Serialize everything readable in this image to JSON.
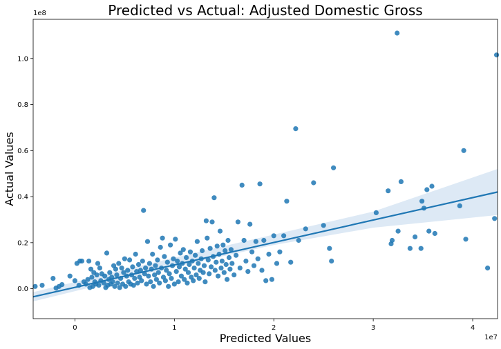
{
  "chart_data": {
    "type": "scatter",
    "title": "Predicted vs Actual: Adjusted Domestic Gross",
    "xlabel": "Predicted Values",
    "ylabel": "Actual Values",
    "x_offset_label": "1e7",
    "y_offset_label": "1e8",
    "xlim": [
      -4200000,
      42500000
    ],
    "ylim": [
      -13000000,
      117000000
    ],
    "x_ticks": [
      0,
      10000000,
      20000000,
      30000000,
      40000000
    ],
    "x_tick_labels": [
      "0",
      "1",
      "2",
      "3",
      "4"
    ],
    "y_ticks": [
      0,
      20000000,
      40000000,
      60000000,
      80000000,
      100000000
    ],
    "y_tick_labels": [
      "0.0",
      "0.2",
      "0.4",
      "0.6",
      "0.8",
      "1.0"
    ],
    "grid": false,
    "point_color": "#1f77b4",
    "regression": {
      "color": "#1f77b4",
      "ci_color": "#c6dbef",
      "line": [
        [
          -4200000,
          -3500000
        ],
        [
          42500000,
          42000000
        ]
      ],
      "ci_upper": [
        [
          -4200000,
          -1500000
        ],
        [
          10000000,
          13500000
        ],
        [
          20000000,
          23500000
        ],
        [
          30000000,
          33500000
        ],
        [
          42500000,
          52000000
        ]
      ],
      "ci_lower": [
        [
          -4200000,
          -5500000
        ],
        [
          10000000,
          9500000
        ],
        [
          20000000,
          19000000
        ],
        [
          30000000,
          26500000
        ],
        [
          42500000,
          32000000
        ]
      ]
    },
    "points": [
      [
        -4000000,
        1000000
      ],
      [
        -3300000,
        1500000
      ],
      [
        -2200000,
        4500000
      ],
      [
        -1900000,
        300000
      ],
      [
        -1600000,
        1000000
      ],
      [
        -1300000,
        1800000
      ],
      [
        -500000,
        5500000
      ],
      [
        0,
        3500000
      ],
      [
        200000,
        11000000
      ],
      [
        400000,
        1500000
      ],
      [
        500000,
        12000000
      ],
      [
        700000,
        12000000
      ],
      [
        900000,
        3000000
      ],
      [
        1100000,
        2000000
      ],
      [
        1300000,
        4000000
      ],
      [
        1400000,
        12000000
      ],
      [
        1500000,
        500000
      ],
      [
        1600000,
        8500000
      ],
      [
        1700000,
        5000000
      ],
      [
        1800000,
        1000000
      ],
      [
        1900000,
        7000000
      ],
      [
        2000000,
        3000000
      ],
      [
        2100000,
        2000000
      ],
      [
        2200000,
        6000000
      ],
      [
        2300000,
        11000000
      ],
      [
        2400000,
        1500000
      ],
      [
        2500000,
        9000000
      ],
      [
        2600000,
        3500000
      ],
      [
        2700000,
        6500000
      ],
      [
        2900000,
        2500000
      ],
      [
        3000000,
        5500000
      ],
      [
        3100000,
        500000
      ],
      [
        3200000,
        15500000
      ],
      [
        3300000,
        1500000
      ],
      [
        3400000,
        4000000
      ],
      [
        3500000,
        7000000
      ],
      [
        3600000,
        2000000
      ],
      [
        3700000,
        5000000
      ],
      [
        3800000,
        3000000
      ],
      [
        3900000,
        10000000
      ],
      [
        4000000,
        1000000
      ],
      [
        4100000,
        8500000
      ],
      [
        4200000,
        6000000
      ],
      [
        4300000,
        2500000
      ],
      [
        4400000,
        11000000
      ],
      [
        4500000,
        500000
      ],
      [
        4600000,
        4500000
      ],
      [
        4700000,
        9000000
      ],
      [
        4800000,
        2000000
      ],
      [
        4900000,
        7000000
      ],
      [
        5000000,
        13000000
      ],
      [
        5100000,
        1000000
      ],
      [
        5200000,
        5500000
      ],
      [
        5300000,
        8000000
      ],
      [
        5400000,
        3000000
      ],
      [
        5500000,
        12500000
      ],
      [
        5600000,
        2000000
      ],
      [
        5700000,
        6000000
      ],
      [
        5800000,
        9500000
      ],
      [
        5900000,
        1500000
      ],
      [
        6000000,
        4500000
      ],
      [
        6100000,
        15000000
      ],
      [
        6200000,
        7500000
      ],
      [
        6300000,
        2500000
      ],
      [
        6400000,
        10500000
      ],
      [
        6500000,
        5000000
      ],
      [
        6600000,
        8000000
      ],
      [
        6700000,
        3500000
      ],
      [
        6800000,
        12000000
      ],
      [
        6900000,
        34000000
      ],
      [
        7000000,
        6500000
      ],
      [
        7100000,
        9000000
      ],
      [
        7200000,
        2000000
      ],
      [
        7300000,
        20500000
      ],
      [
        7400000,
        5500000
      ],
      [
        7500000,
        11000000
      ],
      [
        7600000,
        3000000
      ],
      [
        7700000,
        8500000
      ],
      [
        7800000,
        15000000
      ],
      [
        7900000,
        1000000
      ],
      [
        8000000,
        6000000
      ],
      [
        8100000,
        10000000
      ],
      [
        8200000,
        4000000
      ],
      [
        8300000,
        12500000
      ],
      [
        8400000,
        7000000
      ],
      [
        8500000,
        2500000
      ],
      [
        8600000,
        18000000
      ],
      [
        8700000,
        9000000
      ],
      [
        8800000,
        22000000
      ],
      [
        8900000,
        5000000
      ],
      [
        9000000,
        14000000
      ],
      [
        9100000,
        3500000
      ],
      [
        9200000,
        8000000
      ],
      [
        9300000,
        11500000
      ],
      [
        9400000,
        1000000
      ],
      [
        9500000,
        6500000
      ],
      [
        9600000,
        19000000
      ],
      [
        9700000,
        4500000
      ],
      [
        9800000,
        10000000
      ],
      [
        9900000,
        13000000
      ],
      [
        10000000,
        2000000
      ],
      [
        10100000,
        21500000
      ],
      [
        10200000,
        7500000
      ],
      [
        10300000,
        12000000
      ],
      [
        10400000,
        3000000
      ],
      [
        10500000,
        9500000
      ],
      [
        10600000,
        15500000
      ],
      [
        10700000,
        5500000
      ],
      [
        10800000,
        11000000
      ],
      [
        10900000,
        17000000
      ],
      [
        11000000,
        4000000
      ],
      [
        11100000,
        8500000
      ],
      [
        11200000,
        13500000
      ],
      [
        11300000,
        2500000
      ],
      [
        11400000,
        7000000
      ],
      [
        11500000,
        10500000
      ],
      [
        11600000,
        16000000
      ],
      [
        11700000,
        5000000
      ],
      [
        11800000,
        12000000
      ],
      [
        11900000,
        3500000
      ],
      [
        12000000,
        9000000
      ],
      [
        12100000,
        14500000
      ],
      [
        12200000,
        6000000
      ],
      [
        12300000,
        20500000
      ],
      [
        12400000,
        11000000
      ],
      [
        12500000,
        4500000
      ],
      [
        12600000,
        8000000
      ],
      [
        12700000,
        13000000
      ],
      [
        12800000,
        16500000
      ],
      [
        12900000,
        7000000
      ],
      [
        13000000,
        10000000
      ],
      [
        13100000,
        3000000
      ],
      [
        13200000,
        29500000
      ],
      [
        13300000,
        22000000
      ],
      [
        13400000,
        12500000
      ],
      [
        13500000,
        6500000
      ],
      [
        13600000,
        17500000
      ],
      [
        13700000,
        9500000
      ],
      [
        13800000,
        29000000
      ],
      [
        13900000,
        14000000
      ],
      [
        14000000,
        39500000
      ],
      [
        14100000,
        8000000
      ],
      [
        14200000,
        11500000
      ],
      [
        14300000,
        18500000
      ],
      [
        14400000,
        5500000
      ],
      [
        14500000,
        15000000
      ],
      [
        14600000,
        25000000
      ],
      [
        14700000,
        9000000
      ],
      [
        14800000,
        12000000
      ],
      [
        14900000,
        19000000
      ],
      [
        15000000,
        7000000
      ],
      [
        15100000,
        16500000
      ],
      [
        15200000,
        10500000
      ],
      [
        15300000,
        4000000
      ],
      [
        15400000,
        21000000
      ],
      [
        15500000,
        13500000
      ],
      [
        15600000,
        8500000
      ],
      [
        15700000,
        17000000
      ],
      [
        15800000,
        11000000
      ],
      [
        16000000,
        6000000
      ],
      [
        16200000,
        14500000
      ],
      [
        16400000,
        29000000
      ],
      [
        16600000,
        9000000
      ],
      [
        16800000,
        45000000
      ],
      [
        17000000,
        21000000
      ],
      [
        17200000,
        12000000
      ],
      [
        17400000,
        7500000
      ],
      [
        17600000,
        28000000
      ],
      [
        17800000,
        16000000
      ],
      [
        18000000,
        10000000
      ],
      [
        18200000,
        20500000
      ],
      [
        18400000,
        13000000
      ],
      [
        18600000,
        45500000
      ],
      [
        18800000,
        8000000
      ],
      [
        19000000,
        21000000
      ],
      [
        19200000,
        3500000
      ],
      [
        19500000,
        15000000
      ],
      [
        19800000,
        4000000
      ],
      [
        20000000,
        23000000
      ],
      [
        20300000,
        11000000
      ],
      [
        20600000,
        16000000
      ],
      [
        21000000,
        23000000
      ],
      [
        21300000,
        38000000
      ],
      [
        21700000,
        11500000
      ],
      [
        22200000,
        69500000
      ],
      [
        22500000,
        21000000
      ],
      [
        23200000,
        26000000
      ],
      [
        24000000,
        46000000
      ],
      [
        25000000,
        27500000
      ],
      [
        25600000,
        17500000
      ],
      [
        25800000,
        12000000
      ],
      [
        26000000,
        52500000
      ],
      [
        30300000,
        33000000
      ],
      [
        31500000,
        42500000
      ],
      [
        31800000,
        19500000
      ],
      [
        31900000,
        21000000
      ],
      [
        32400000,
        111000000
      ],
      [
        32500000,
        25000000
      ],
      [
        32800000,
        46500000
      ],
      [
        33700000,
        17500000
      ],
      [
        34200000,
        22500000
      ],
      [
        34800000,
        17500000
      ],
      [
        34900000,
        38000000
      ],
      [
        35100000,
        35000000
      ],
      [
        35400000,
        43000000
      ],
      [
        35600000,
        25000000
      ],
      [
        35900000,
        44500000
      ],
      [
        36200000,
        24000000
      ],
      [
        38700000,
        36000000
      ],
      [
        39100000,
        60000000
      ],
      [
        39300000,
        21500000
      ],
      [
        41500000,
        9000000
      ],
      [
        42200000,
        30500000
      ],
      [
        42400000,
        101500000
      ]
    ]
  }
}
